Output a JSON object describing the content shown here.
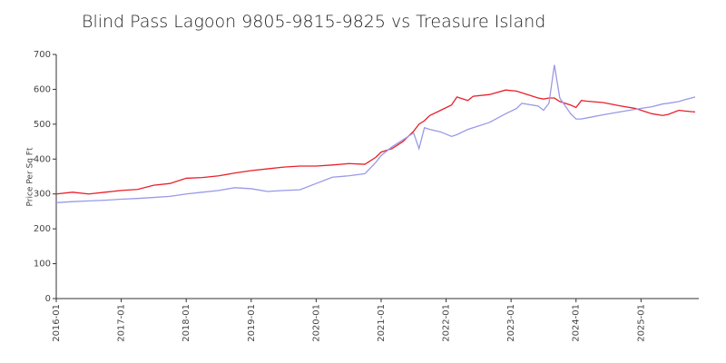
{
  "chart_data": {
    "type": "line",
    "title": "Blind Pass Lagoon  9805-9815-9825 vs Treasure Island",
    "y_label": "Price Per Sq Ft",
    "x": [
      "2016-01",
      "2016-04",
      "2016-07",
      "2016-10",
      "2017-01",
      "2017-04",
      "2017-07",
      "2017-10",
      "2018-01",
      "2018-04",
      "2018-07",
      "2018-10",
      "2019-01",
      "2019-04",
      "2019-07",
      "2019-10",
      "2020-01",
      "2020-04",
      "2020-07",
      "2020-10",
      "2020-12",
      "2021-01",
      "2021-03",
      "2021-05",
      "2021-07",
      "2021-08",
      "2021-09",
      "2021-10",
      "2021-12",
      "2022-02",
      "2022-03",
      "2022-05",
      "2022-06",
      "2022-09",
      "2022-12",
      "2023-02",
      "2023-03",
      "2023-06",
      "2023-07",
      "2023-08",
      "2023-09",
      "2023-10",
      "2023-12",
      "2024-01",
      "2024-02",
      "2024-03",
      "2024-06",
      "2024-09",
      "2024-12",
      "2025-03",
      "2025-05",
      "2025-06",
      "2025-08",
      "2025-09",
      "2025-11"
    ],
    "series": [
      {
        "color": "#e8202a",
        "values": [
          300,
          305,
          300,
          305,
          310,
          313,
          325,
          330,
          345,
          347,
          352,
          360,
          367,
          372,
          377,
          380,
          380,
          383,
          387,
          385,
          405,
          420,
          430,
          450,
          480,
          500,
          510,
          525,
          540,
          555,
          578,
          568,
          580,
          585,
          598,
          595,
          590,
          575,
          572,
          575,
          575,
          565,
          555,
          548,
          568,
          566,
          562,
          553,
          545,
          530,
          525,
          528,
          540,
          538,
          535
        ]
      },
      {
        "color": "#9999e8",
        "values": [
          275,
          278,
          280,
          282,
          285,
          287,
          290,
          293,
          300,
          305,
          310,
          318,
          315,
          307,
          310,
          312,
          330,
          348,
          352,
          358,
          390,
          410,
          435,
          455,
          475,
          430,
          490,
          485,
          478,
          465,
          470,
          485,
          490,
          505,
          530,
          545,
          560,
          552,
          540,
          560,
          670,
          575,
          530,
          515,
          515,
          518,
          527,
          535,
          543,
          550,
          558,
          560,
          565,
          570,
          578
        ]
      }
    ],
    "xlim": [
      "2016-01",
      "2025-11"
    ],
    "xticks": [
      "2016-01",
      "2017-01",
      "2018-01",
      "2019-01",
      "2020-01",
      "2021-01",
      "2022-01",
      "2023-01",
      "2024-01",
      "2025-01"
    ],
    "ylim": [
      0,
      700
    ],
    "yticks": [
      0,
      100,
      200,
      300,
      400,
      500,
      600,
      700
    ],
    "grid": false
  }
}
